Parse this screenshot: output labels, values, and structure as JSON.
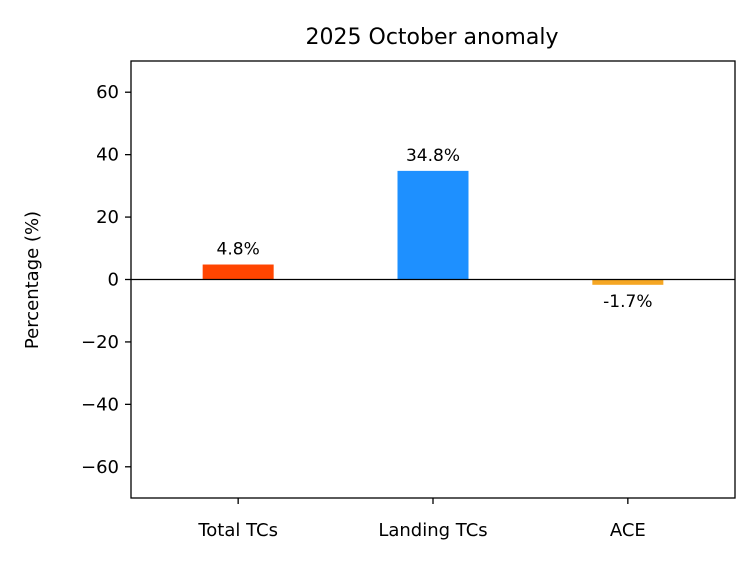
{
  "chart_data": {
    "type": "bar",
    "title": "2025 October anomaly",
    "xlabel": "",
    "ylabel": "Percentage (%)",
    "categories": [
      "Total TCs",
      "Landing TCs",
      "ACE"
    ],
    "values": [
      4.8,
      34.8,
      -1.7
    ],
    "value_labels": [
      "4.8%",
      "34.8%",
      "-1.7%"
    ],
    "colors": [
      "#ff4500",
      "#1e90ff",
      "#f5a623"
    ],
    "ylim": [
      -70,
      70
    ],
    "yticks": [
      60,
      40,
      20,
      0,
      -20,
      -40,
      -60
    ],
    "ytick_labels": [
      "60",
      "40",
      "20",
      "0",
      "−20",
      "−40",
      "−60"
    ],
    "zero_line": true,
    "grid": false,
    "legend": "none"
  }
}
